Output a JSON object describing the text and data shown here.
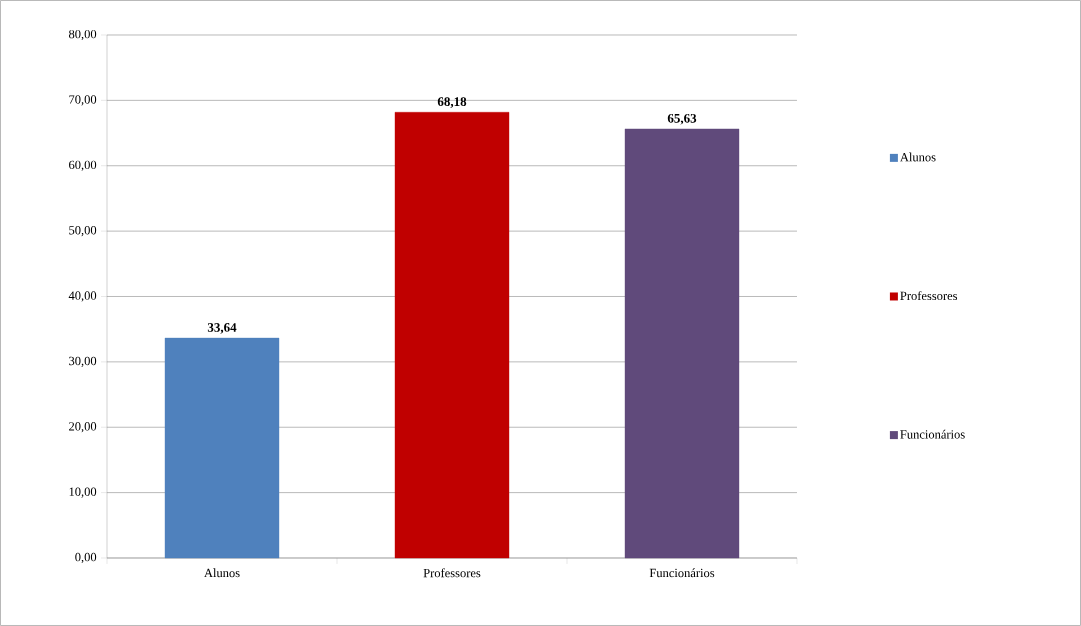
{
  "chart_data": {
    "type": "bar",
    "categories": [
      "Alunos",
      "Professores",
      "Funcionários"
    ],
    "series": [
      {
        "name": "Alunos",
        "color": "#4f81bd",
        "values": [
          33.64,
          null,
          null
        ],
        "value_labels": [
          "33,64",
          null,
          null
        ]
      },
      {
        "name": "Professores",
        "color": "#c00000",
        "values": [
          null,
          68.18,
          null
        ],
        "value_labels": [
          null,
          "68,18",
          null
        ]
      },
      {
        "name": "Funcionários",
        "color": "#604a7b",
        "values": [
          null,
          null,
          65.63
        ],
        "value_labels": [
          null,
          null,
          "65,63"
        ]
      }
    ],
    "ylim": [
      0,
      80
    ],
    "yticks": [
      {
        "value": 0,
        "label": "0,00"
      },
      {
        "value": 10,
        "label": "10,00"
      },
      {
        "value": 20,
        "label": "20,00"
      },
      {
        "value": 30,
        "label": "30,00"
      },
      {
        "value": 40,
        "label": "40,00"
      },
      {
        "value": 50,
        "label": "50,00"
      },
      {
        "value": 60,
        "label": "60,00"
      },
      {
        "value": 70,
        "label": "70,00"
      },
      {
        "value": 80,
        "label": "80,00"
      }
    ],
    "grid": "y",
    "legend": "right"
  }
}
